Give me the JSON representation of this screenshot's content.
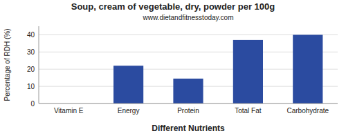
{
  "chart_data": {
    "type": "bar",
    "title": "Soup, cream of vegetable, dry, powder per 100g",
    "subtitle": "www.dietandfitnesstoday.com",
    "xlabel": "Different Nutrients",
    "ylabel": "Percentage of RDH (%)",
    "categories": [
      "Vitamin E",
      "Energy",
      "Protein",
      "Total Fat",
      "Carbohydrate"
    ],
    "values": [
      0,
      22,
      14.5,
      37,
      40
    ],
    "color": "#2b4ba0",
    "ylim": [
      0,
      45
    ],
    "yticks": [
      0,
      10,
      20,
      30,
      40
    ],
    "grid": true
  }
}
